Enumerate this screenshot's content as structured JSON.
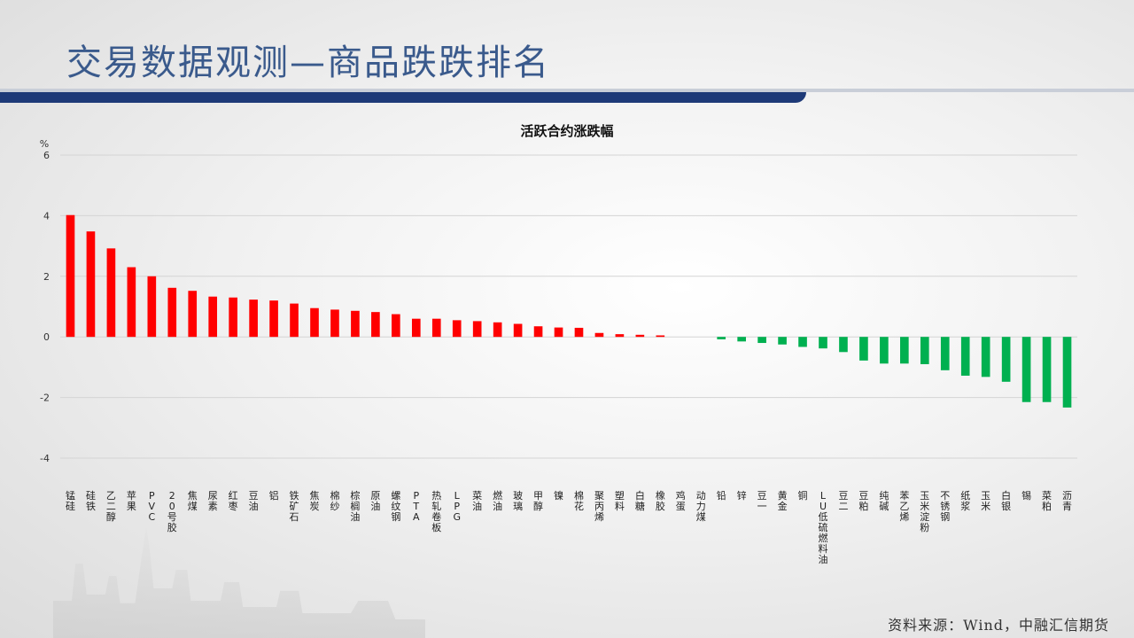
{
  "slide": {
    "title": "交易数据观测—商品跌跌排名",
    "source": "资料来源：Wind，中融汇信期货"
  },
  "colors": {
    "positive": "#ff0000",
    "negative": "#00b050",
    "title": "#3a5a8c",
    "bar_band": "#1e3a78"
  },
  "chart_data": {
    "type": "bar",
    "title": "活跃合约涨跌幅",
    "ylabel": "%",
    "ylim": [
      -4,
      6
    ],
    "yticks": [
      6,
      4,
      2,
      0,
      -2,
      -4
    ],
    "grid": true,
    "categories": [
      "锰硅",
      "硅铁",
      "乙二醇",
      "苹果",
      "PVC",
      "20号胶",
      "焦煤",
      "尿素",
      "红枣",
      "豆油",
      "铝",
      "铁矿石",
      "焦炭",
      "棉纱",
      "棕榈油",
      "原油",
      "螺纹钢",
      "PTA",
      "热轧卷板",
      "LPG",
      "菜油",
      "燃油",
      "玻璃",
      "甲醇",
      "镍",
      "棉花",
      "聚丙烯",
      "塑料",
      "白糖",
      "橡胶",
      "鸡蛋",
      "动力煤",
      "铅",
      "锌",
      "豆一",
      "黄金",
      "铜",
      "LU低硫燃料油",
      "豆二",
      "豆粕",
      "纯碱",
      "苯乙烯",
      "玉米淀粉",
      "不锈钢",
      "纸浆",
      "玉米",
      "白银",
      "锡",
      "菜粕",
      "沥青"
    ],
    "values": [
      4.02,
      3.48,
      2.92,
      2.3,
      2.0,
      1.62,
      1.52,
      1.33,
      1.3,
      1.23,
      1.2,
      1.1,
      0.95,
      0.9,
      0.86,
      0.82,
      0.75,
      0.6,
      0.6,
      0.55,
      0.52,
      0.48,
      0.43,
      0.35,
      0.31,
      0.3,
      0.13,
      0.09,
      0.07,
      0.05,
      0.0,
      0.0,
      -0.08,
      -0.15,
      -0.2,
      -0.25,
      -0.33,
      -0.38,
      -0.5,
      -0.78,
      -0.88,
      -0.88,
      -0.9,
      -1.1,
      -1.28,
      -1.32,
      -1.48,
      -2.15,
      -2.15,
      -2.33
    ]
  }
}
